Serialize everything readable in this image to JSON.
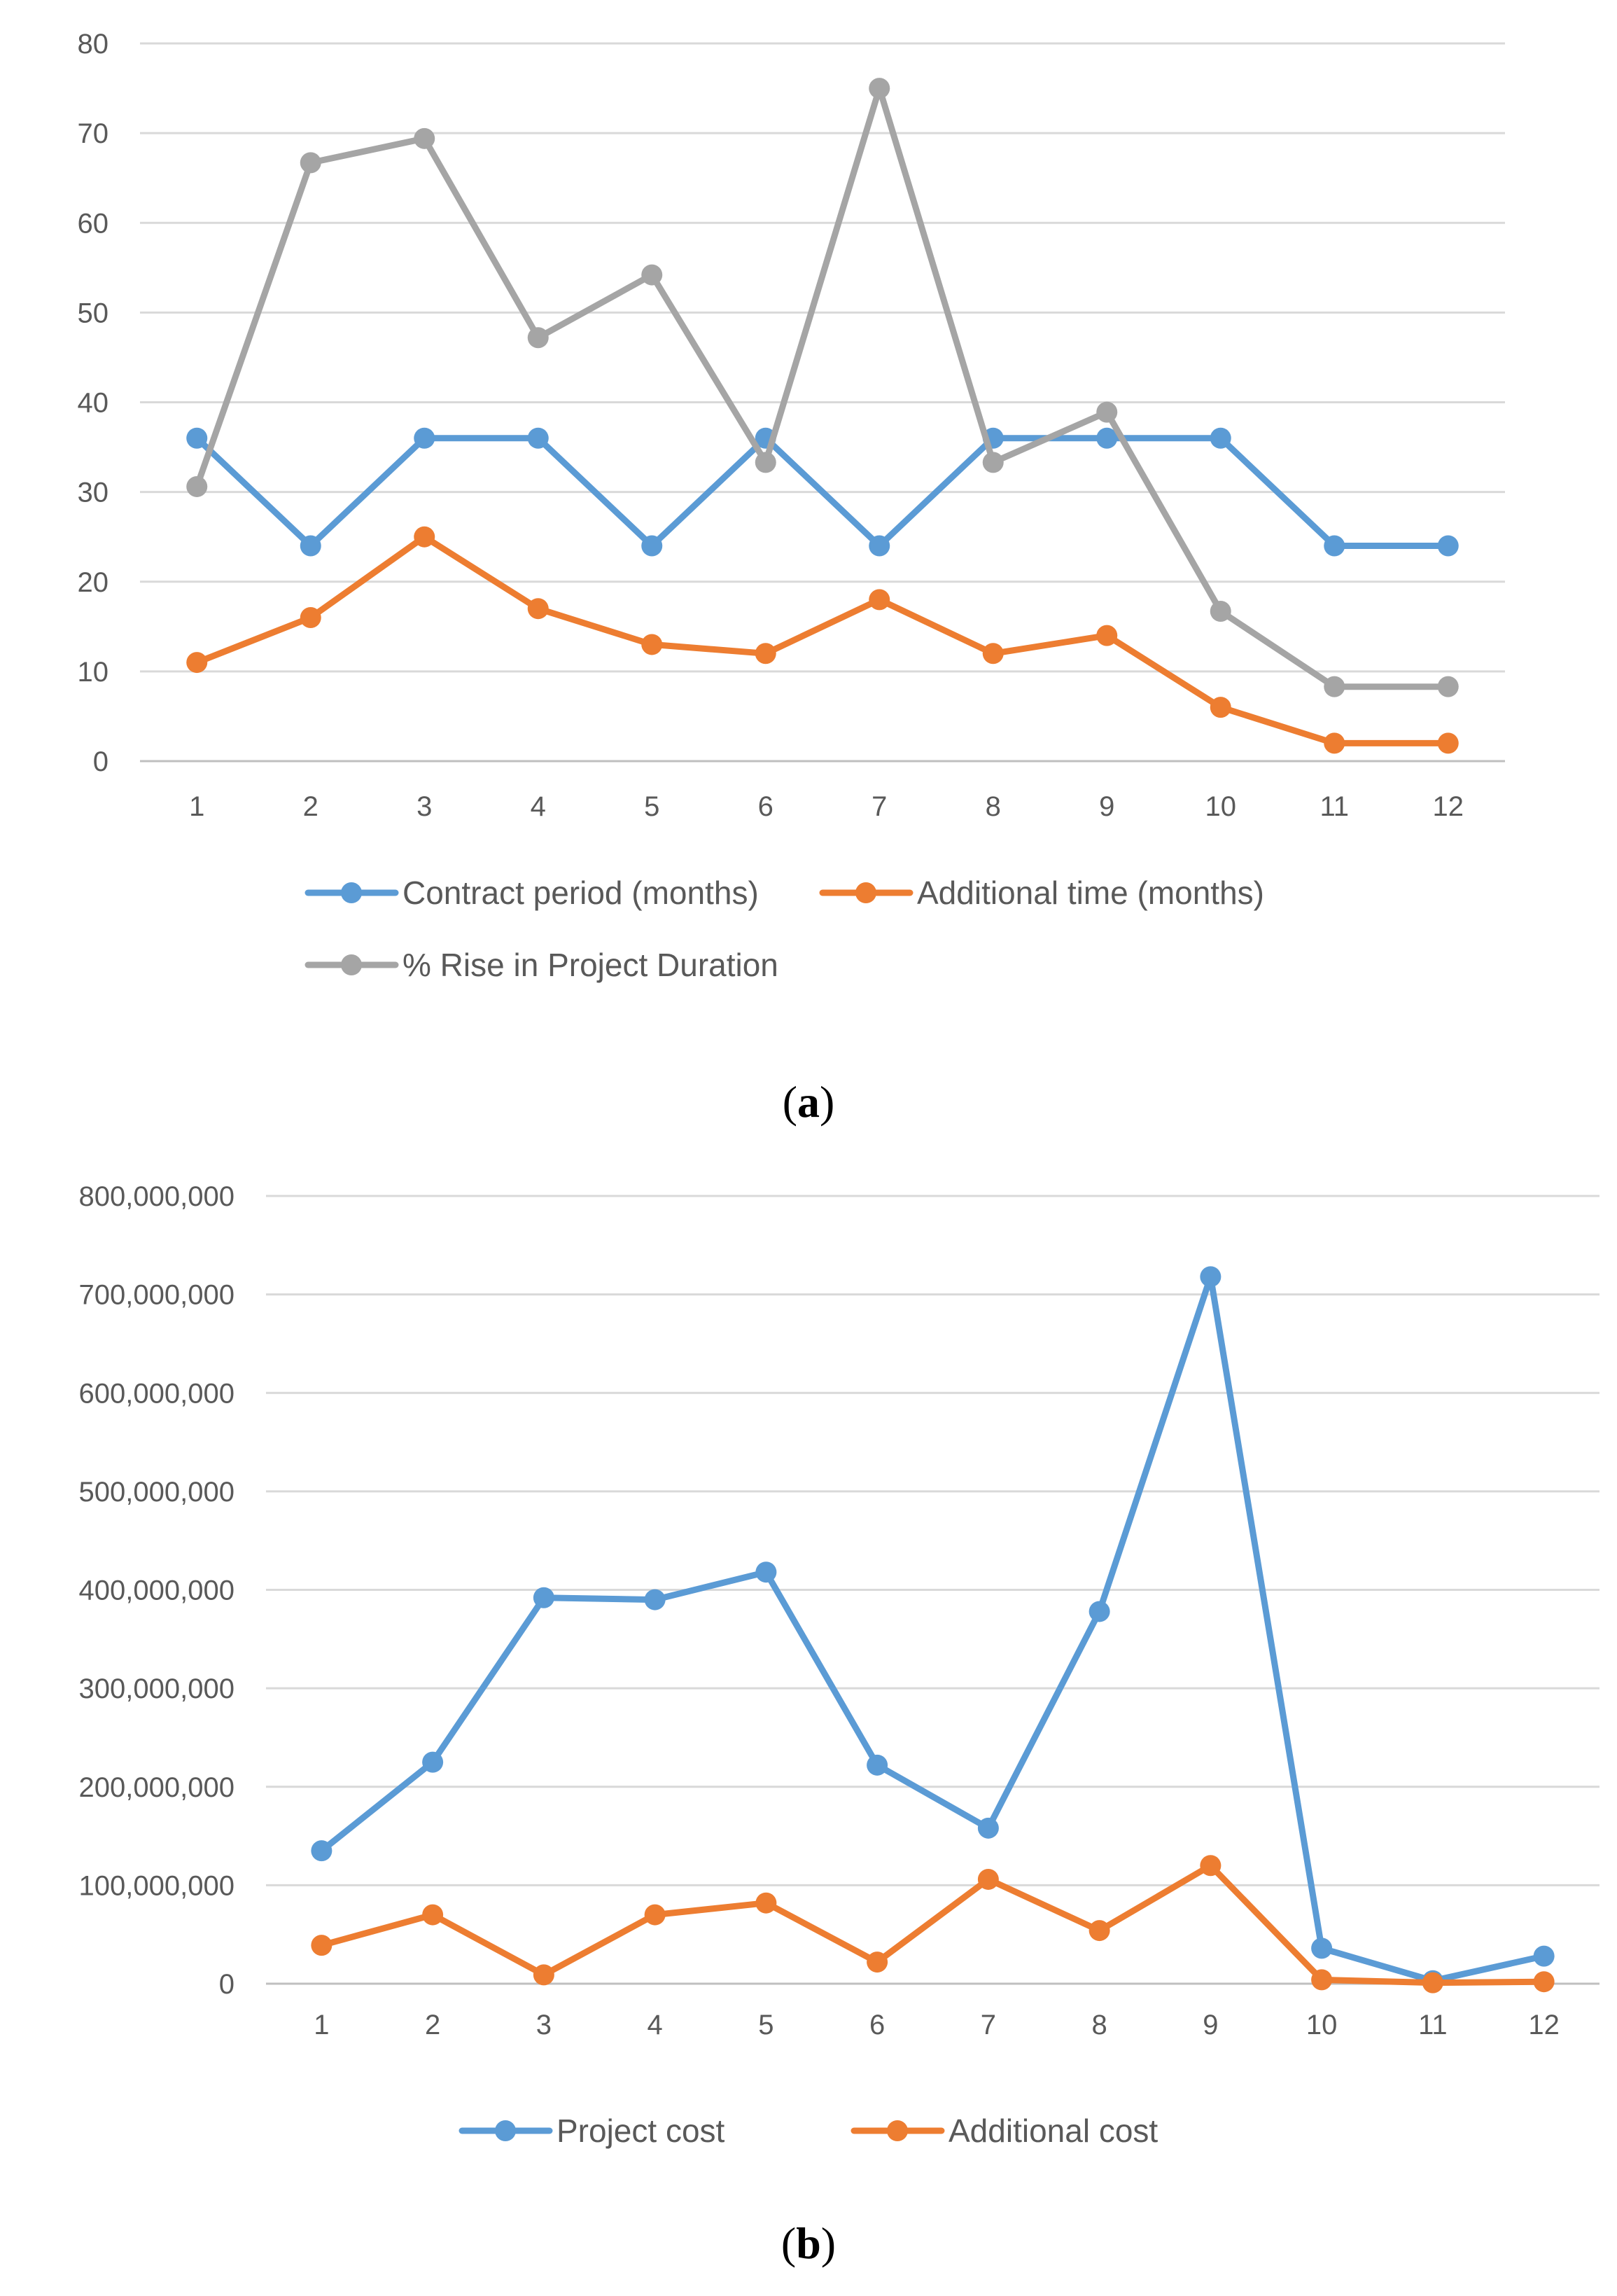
{
  "chart_data": [
    {
      "type": "line",
      "caption_letter": "a",
      "categories": [
        "1",
        "2",
        "3",
        "4",
        "5",
        "6",
        "7",
        "8",
        "9",
        "10",
        "11",
        "12"
      ],
      "ylim": [
        0,
        80
      ],
      "yticks": [
        0,
        10,
        20,
        30,
        40,
        50,
        60,
        70,
        80
      ],
      "ytick_labels": [
        "0",
        "10",
        "20",
        "30",
        "40",
        "50",
        "60",
        "70",
        "80"
      ],
      "grid": true,
      "legend_position": "bottom",
      "series": [
        {
          "name": "Contract period (months)",
          "color": "#5B9BD5",
          "values": [
            36,
            24,
            36,
            36,
            24,
            36,
            24,
            36,
            36,
            36,
            24,
            24
          ]
        },
        {
          "name": "Additional time (months)",
          "color": "#ED7D31",
          "values": [
            11,
            16,
            25,
            17,
            13,
            12,
            18,
            12,
            14,
            6,
            2,
            2
          ]
        },
        {
          "name": "% Rise in Project Duration",
          "color": "#A5A5A5",
          "values": [
            30.6,
            66.7,
            69.4,
            47.2,
            54.2,
            33.3,
            75,
            33.3,
            38.9,
            16.7,
            8.3,
            8.3
          ]
        }
      ]
    },
    {
      "type": "line",
      "caption_letter": "b",
      "categories": [
        "1",
        "2",
        "3",
        "4",
        "5",
        "6",
        "7",
        "8",
        "9",
        "10",
        "11",
        "12"
      ],
      "ylim": [
        0,
        800000000
      ],
      "yticks": [
        0,
        100000000,
        200000000,
        300000000,
        400000000,
        500000000,
        600000000,
        700000000,
        800000000
      ],
      "ytick_labels": [
        "0",
        "100,000,000",
        "200,000,000",
        "300,000,000",
        "400,000,000",
        "500,000,000",
        "600,000,000",
        "700,000,000",
        "800,000,000"
      ],
      "grid": true,
      "legend_position": "bottom",
      "series": [
        {
          "name": "Project cost",
          "color": "#5B9BD5",
          "values": [
            135000000,
            225000000,
            392000000,
            390000000,
            418000000,
            222000000,
            158000000,
            378000000,
            718000000,
            36000000,
            3000000,
            28000000
          ]
        },
        {
          "name": "Additional cost",
          "color": "#ED7D31",
          "values": [
            39000000,
            70000000,
            9000000,
            70000000,
            82000000,
            22000000,
            106000000,
            54000000,
            120000000,
            4000000,
            1000000,
            2000000
          ]
        }
      ]
    }
  ]
}
